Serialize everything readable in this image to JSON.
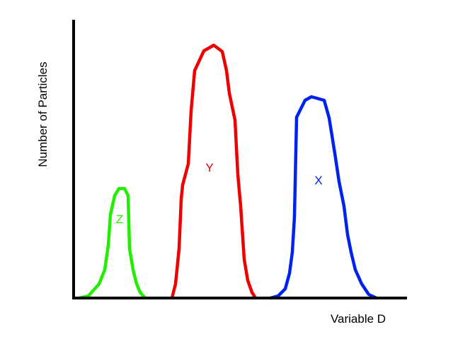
{
  "chart_data": {
    "type": "line",
    "title": "",
    "xlabel": "Variable D",
    "ylabel": "Number of Particles",
    "grid": false,
    "axis_ticks": false,
    "series": [
      {
        "name": "Z",
        "color": "#22ee00",
        "x": [
          112,
          125,
          140,
          148,
          153,
          156,
          162,
          168,
          176,
          181,
          183,
          188,
          193,
          198,
          205
        ],
        "y": [
          0,
          3,
          20,
          40,
          75,
          118,
          145,
          155,
          155,
          145,
          70,
          40,
          20,
          8,
          0
        ]
      },
      {
        "name": "Y",
        "color": "#ee0000",
        "x": [
          243,
          248,
          253,
          256,
          258,
          266,
          270,
          275,
          288,
          302,
          314,
          320,
          324,
          332,
          336,
          340,
          345,
          350,
          356,
          361
        ],
        "y": [
          0,
          20,
          70,
          140,
          160,
          190,
          265,
          322,
          350,
          358,
          349,
          322,
          290,
          252,
          175,
          130,
          55,
          25,
          8,
          0
        ]
      },
      {
        "name": "X",
        "color": "#0022ee",
        "x": [
          382,
          393,
          403,
          409,
          413,
          416,
          419,
          431,
          440,
          458,
          465,
          473,
          479,
          486,
          491,
          496,
          502,
          511,
          521,
          532
        ],
        "y": [
          0,
          3,
          13,
          35,
          65,
          115,
          256,
          280,
          285,
          280,
          255,
          205,
          165,
          130,
          90,
          65,
          40,
          20,
          5,
          0
        ]
      }
    ]
  }
}
